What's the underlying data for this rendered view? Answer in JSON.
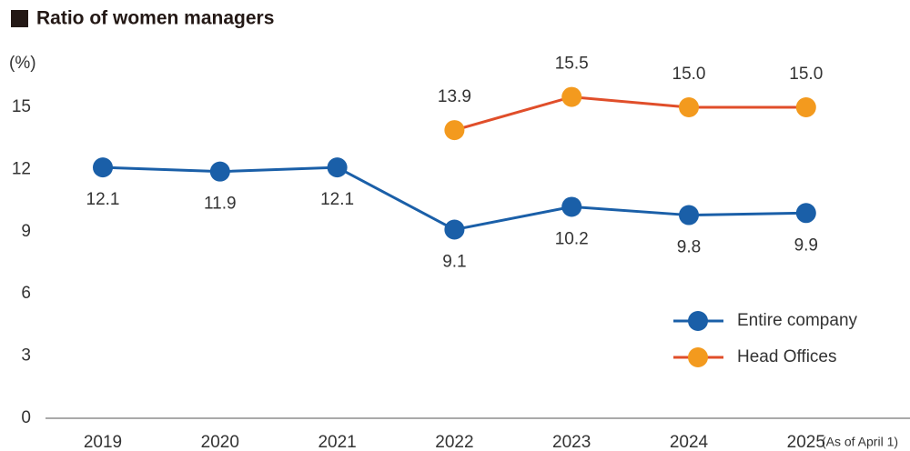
{
  "chart_data": {
    "type": "line",
    "title": "Ratio of women managers",
    "y_unit_label": "(%)",
    "x_note": "(As of April 1)",
    "categories": [
      "2019",
      "2020",
      "2021",
      "2022",
      "2023",
      "2024",
      "2025"
    ],
    "series": [
      {
        "name": "Entire company",
        "color": "#1a5fa8",
        "marker_color": "#1a5fa8",
        "values": [
          12.1,
          11.9,
          12.1,
          9.1,
          10.2,
          9.8,
          9.9
        ],
        "value_labels": [
          "12.1",
          "11.9",
          "12.1",
          "9.1",
          "10.2",
          "9.8",
          "9.9"
        ],
        "label_position": "below"
      },
      {
        "name": "Head Offices",
        "color": "#e04e2a",
        "marker_color": "#f39a1e",
        "values": [
          null,
          null,
          null,
          13.9,
          15.5,
          15.0,
          15.0
        ],
        "value_labels": [
          null,
          null,
          null,
          "13.9",
          "15.5",
          "15.0",
          "15.0"
        ],
        "label_position": "above"
      }
    ],
    "ylim": [
      0,
      15
    ],
    "yticks": [
      0,
      3,
      6,
      9,
      12,
      15
    ],
    "grid": false,
    "legend": "lower right"
  }
}
